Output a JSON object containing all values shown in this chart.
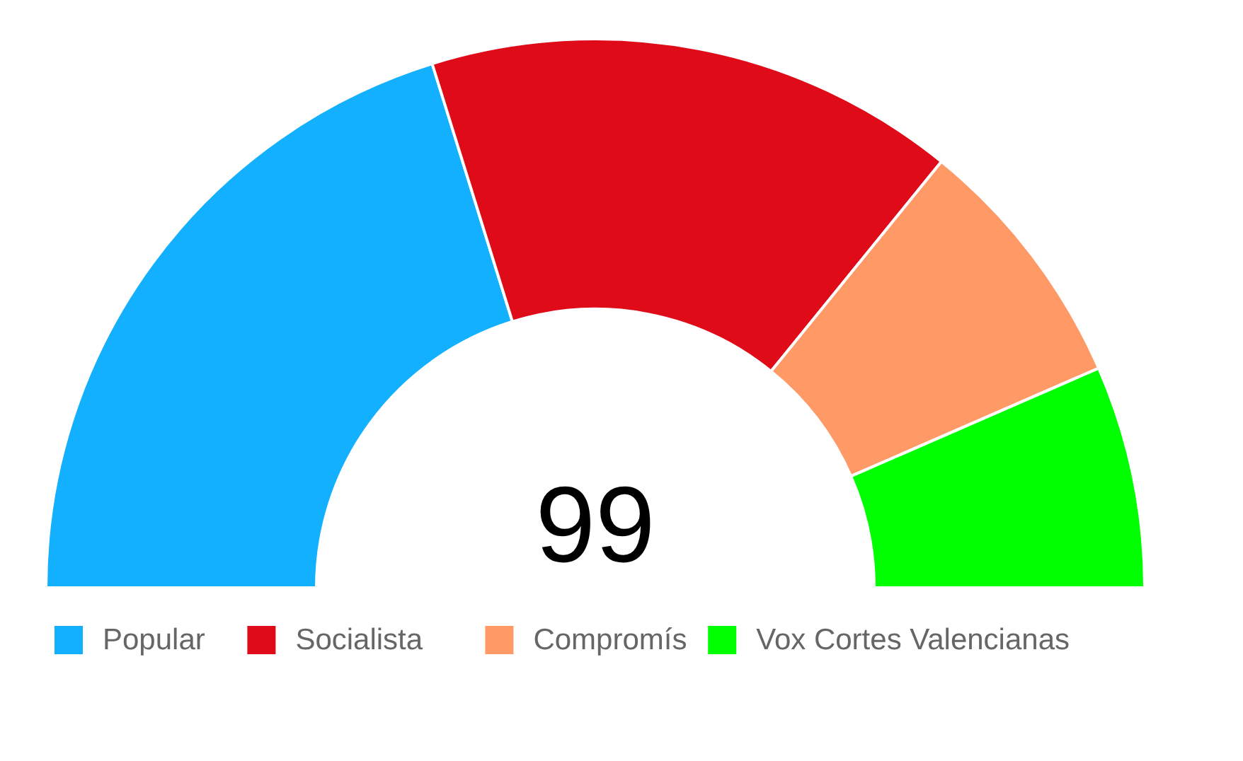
{
  "chart_data": {
    "type": "donut",
    "categories": [
      "Popular",
      "Socialista",
      "Compromís",
      "Vox Cortes Valencianas"
    ],
    "values": [
      40.4,
      31.3,
      15.2,
      13.1
    ],
    "colors": [
      "#12b0ff",
      "#e00b19",
      "#ff9966",
      "#00ff00"
    ],
    "annotations": [
      "99"
    ],
    "legend": "bottom"
  }
}
